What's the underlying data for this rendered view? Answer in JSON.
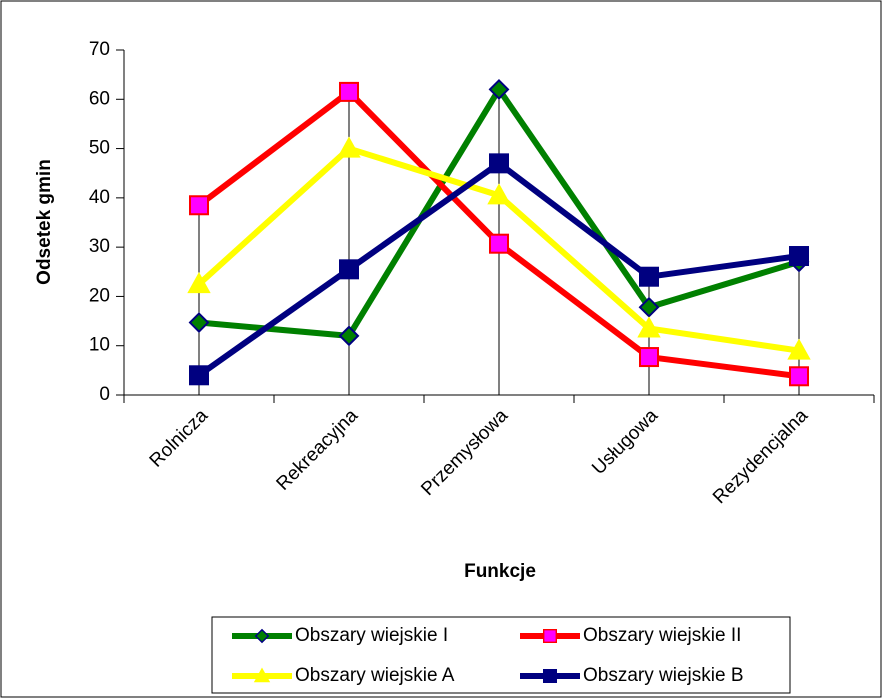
{
  "chart_data": {
    "type": "line",
    "x_label": "Funkcje",
    "y_label": "Odsetek gmin",
    "categories": [
      "Rolnicza",
      "Rekreacyjna",
      "Przemysłowa",
      "Usługowa",
      "Rezydencjalna"
    ],
    "series": [
      {
        "name": "Obszary wiejskie I",
        "color": "#008000",
        "marker": "diamond",
        "marker_color": "#008000",
        "values": [
          14.7,
          12,
          62,
          17.8,
          27
        ]
      },
      {
        "name": "Obszary wiejskie II",
        "color": "#ff0000",
        "marker": "square",
        "marker_color": "#ff00ff",
        "values": [
          38.5,
          61.5,
          30.7,
          7.7,
          3.8
        ]
      },
      {
        "name": "Obszary wiejskie A",
        "color": "#ffff00",
        "marker": "triangle",
        "marker_color": "#ffff00",
        "values": [
          22.5,
          50,
          40.5,
          13.5,
          9
        ]
      },
      {
        "name": "Obszary wiejskie B",
        "color": "#000080",
        "marker": "square",
        "marker_color": "#000080",
        "values": [
          4,
          25.5,
          47,
          24,
          28.2
        ]
      }
    ],
    "ylim": [
      0,
      70
    ],
    "yticks": [
      0,
      10,
      20,
      30,
      40,
      50,
      60,
      70
    ],
    "grid": false,
    "drop_lines": true,
    "legend": "bottom"
  }
}
